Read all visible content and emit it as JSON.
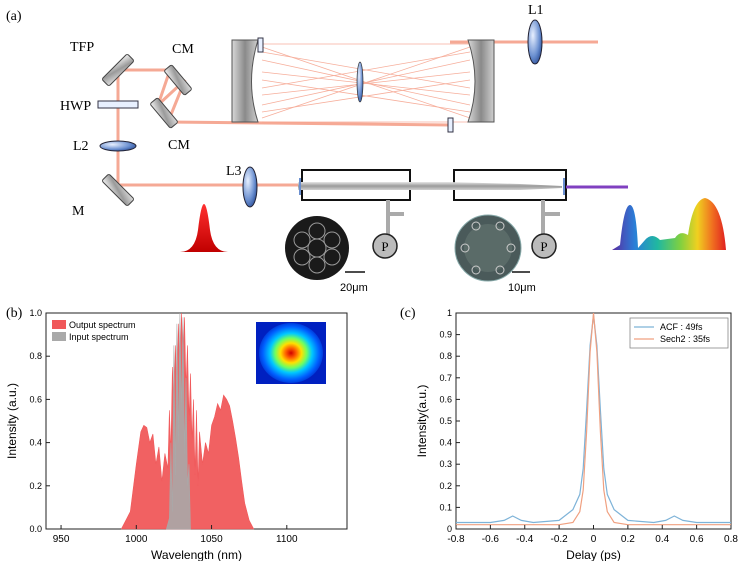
{
  "panel_a": {
    "label": "(a)",
    "components": {
      "tfp": "TFP",
      "hwp": "HWP",
      "cm_top": "CM",
      "cm_bottom": "CM",
      "l1": "L1",
      "l2": "L2",
      "l3": "L3",
      "m": "M",
      "p1": "P",
      "p2": "P"
    },
    "scalebars": [
      "20μm",
      "10μm"
    ]
  },
  "panel_b": {
    "label": "(b)",
    "chart_data": {
      "type": "area",
      "xlabel": "Wavelength (nm)",
      "ylabel": "Intensity (a.u.)",
      "xlim": [
        940,
        1140
      ],
      "ylim": [
        0,
        1.0
      ],
      "xticks": [
        950,
        1000,
        1050,
        1100
      ],
      "yticks": [
        0.0,
        0.2,
        0.4,
        0.6,
        0.8,
        1.0
      ],
      "grid": false,
      "legend_position": "top-left",
      "series": [
        {
          "name": "Output spectrum",
          "color": "#f0585a",
          "x": [
            990,
            996,
            1000,
            1003,
            1005,
            1007,
            1009,
            1011,
            1013,
            1015,
            1017,
            1019,
            1021,
            1022,
            1023,
            1024,
            1025,
            1026,
            1027,
            1028,
            1029,
            1030,
            1031,
            1032,
            1033,
            1034,
            1035,
            1036,
            1037,
            1038,
            1039,
            1040,
            1041,
            1042,
            1044,
            1046,
            1048,
            1050,
            1052,
            1054,
            1056,
            1058,
            1060,
            1062,
            1064,
            1066,
            1068,
            1070,
            1072,
            1075,
            1078
          ],
          "values": [
            0.0,
            0.08,
            0.3,
            0.45,
            0.48,
            0.47,
            0.4,
            0.44,
            0.3,
            0.38,
            0.22,
            0.35,
            0.28,
            0.55,
            0.35,
            0.75,
            0.55,
            0.85,
            0.6,
            0.95,
            0.7,
            1.0,
            0.75,
            0.98,
            0.65,
            0.85,
            0.5,
            0.72,
            0.4,
            0.6,
            0.25,
            0.55,
            0.2,
            0.45,
            0.3,
            0.4,
            0.35,
            0.48,
            0.52,
            0.58,
            0.55,
            0.62,
            0.6,
            0.57,
            0.5,
            0.42,
            0.33,
            0.22,
            0.12,
            0.04,
            0.0
          ]
        },
        {
          "name": "Input spectrum",
          "color": "#a9a9a9",
          "x": [
            1020,
            1022,
            1023,
            1024,
            1025,
            1026,
            1027,
            1028,
            1029,
            1030,
            1031,
            1032,
            1033,
            1034,
            1035,
            1036
          ],
          "values": [
            0.0,
            0.05,
            0.4,
            0.08,
            0.85,
            0.25,
            0.95,
            0.4,
            1.0,
            0.55,
            0.98,
            0.35,
            0.7,
            0.2,
            0.3,
            0.0
          ]
        }
      ]
    }
  },
  "panel_c": {
    "label": "(c)",
    "chart_data": {
      "type": "line",
      "xlabel": "Delay (ps)",
      "ylabel": "Intensity(a.u.)",
      "xlim": [
        -0.8,
        0.8
      ],
      "ylim": [
        0,
        1.0
      ],
      "xticks": [
        -0.8,
        -0.6,
        -0.4,
        -0.2,
        0,
        0.2,
        0.4,
        0.6,
        0.8
      ],
      "yticks": [
        0,
        0.1,
        0.2,
        0.3,
        0.4,
        0.5,
        0.6,
        0.7,
        0.8,
        0.9,
        1
      ],
      "grid": false,
      "legend_position": "top-right",
      "series": [
        {
          "name": "ACF : 49fs",
          "color": "#7eb3d8",
          "x": [
            -0.8,
            -0.6,
            -0.52,
            -0.47,
            -0.42,
            -0.35,
            -0.2,
            -0.12,
            -0.08,
            -0.06,
            -0.04,
            -0.02,
            0,
            0.02,
            0.04,
            0.06,
            0.08,
            0.12,
            0.2,
            0.35,
            0.42,
            0.47,
            0.52,
            0.6,
            0.8
          ],
          "values": [
            0.03,
            0.03,
            0.04,
            0.06,
            0.04,
            0.03,
            0.04,
            0.09,
            0.16,
            0.28,
            0.55,
            0.85,
            0.99,
            0.85,
            0.55,
            0.28,
            0.16,
            0.09,
            0.04,
            0.03,
            0.04,
            0.06,
            0.04,
            0.03,
            0.03
          ]
        },
        {
          "name": "Sech2 : 35fs",
          "color": "#f0a080",
          "x": [
            -0.8,
            -0.2,
            -0.12,
            -0.08,
            -0.06,
            -0.04,
            -0.02,
            0,
            0.02,
            0.04,
            0.06,
            0.08,
            0.12,
            0.2,
            0.8
          ],
          "values": [
            0.02,
            0.02,
            0.03,
            0.08,
            0.18,
            0.45,
            0.82,
            1.0,
            0.82,
            0.45,
            0.18,
            0.08,
            0.03,
            0.02,
            0.02
          ]
        }
      ]
    }
  }
}
